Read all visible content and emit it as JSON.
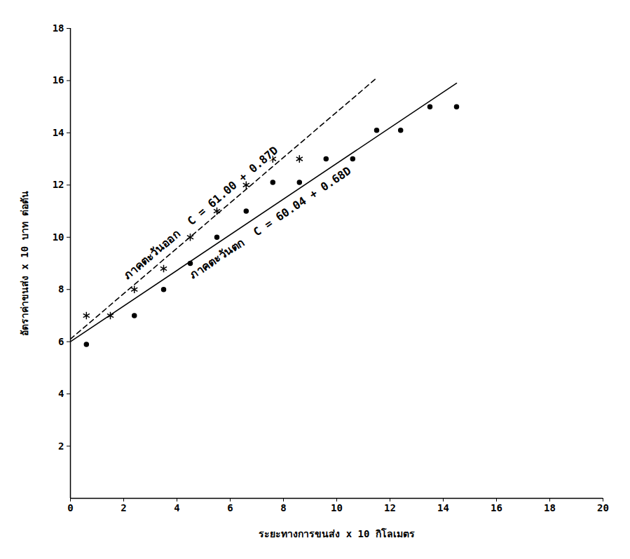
{
  "chart_data": {
    "type": "scatter",
    "x_label": "ระยะทางการขนส่ง x 10 กิโลเมตร",
    "y_label": "อัตราค่าขนส่ง x 10 บาท ต่อตัน",
    "xlim": [
      0,
      20
    ],
    "xticks": [
      0,
      2,
      4,
      6,
      8,
      10,
      12,
      14,
      16,
      18,
      20
    ],
    "ylim": [
      0,
      18
    ],
    "yticks": [
      2,
      4,
      6,
      8,
      10,
      12,
      14,
      16,
      18
    ],
    "grid": false,
    "series": [
      {
        "name": "ภาคตะวันออก",
        "color": "#000000",
        "marker": "asterisk",
        "line_style": "dashed",
        "x": [
          0.6,
          1.5,
          2.4,
          3.5,
          4.5,
          5.5,
          6.6,
          7.6,
          8.6
        ],
        "values": [
          7,
          7,
          8,
          8.8,
          10,
          11,
          12,
          13,
          13
        ],
        "fit_line": {
          "equation": "C = 61.00 + 0.87D",
          "x": [
            0,
            11.5
          ],
          "y": [
            6.1,
            16.1
          ]
        }
      },
      {
        "name": "ภาคตะวันตก",
        "color": "#000000",
        "marker": "dot",
        "line_style": "solid",
        "x": [
          0.6,
          2.4,
          3.5,
          4.5,
          5.5,
          6.6,
          7.6,
          8.6,
          9.6,
          10.6,
          11.5,
          12.4,
          13.5,
          14.5
        ],
        "values": [
          5.9,
          7,
          8,
          9,
          10,
          11,
          12.1,
          12.1,
          13,
          13,
          14.1,
          14.1,
          15,
          15
        ],
        "fit_line": {
          "equation": "C = 60.04 + 0.68D",
          "x": [
            0,
            14.5
          ],
          "y": [
            6.0,
            15.9
          ]
        }
      }
    ]
  }
}
